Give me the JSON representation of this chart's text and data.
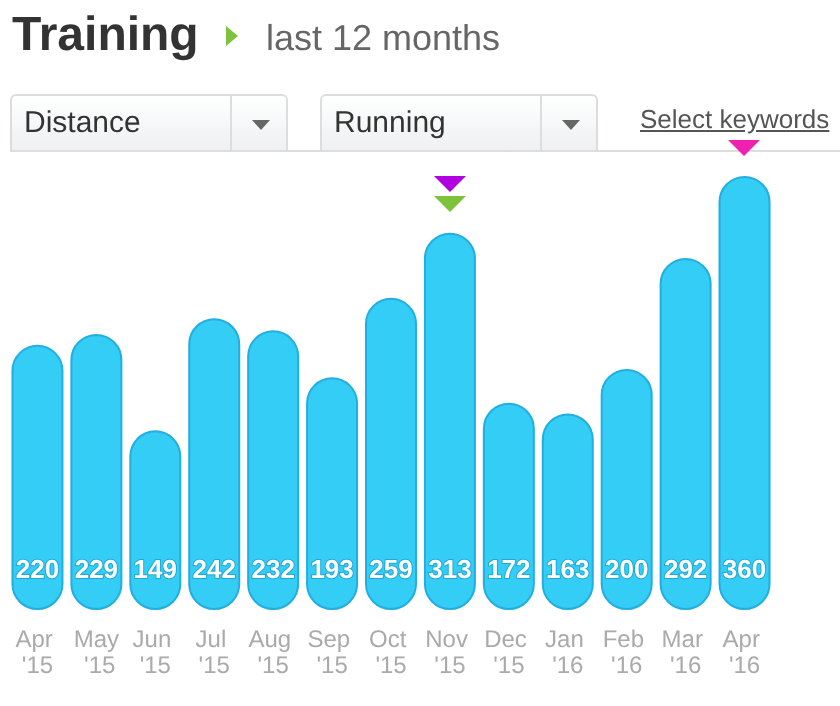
{
  "chart_data": {
    "type": "bar",
    "title": "Training",
    "subtitle": "last 12 months",
    "annotations": [
      "Distance",
      "Running",
      "Select keywords"
    ],
    "categories": [
      "Apr '15",
      "May '15",
      "Jun '15",
      "Jul '15",
      "Aug '15",
      "Sep '15",
      "Oct '15",
      "Nov '15",
      "Dec '15",
      "Jan '16",
      "Feb '16",
      "Mar '16",
      "Apr '16"
    ],
    "values": [
      220,
      229,
      149,
      242,
      232,
      193,
      259,
      313,
      172,
      163,
      200,
      292,
      360
    ],
    "color": "#33cdf6",
    "data_labels": true
  }
}
